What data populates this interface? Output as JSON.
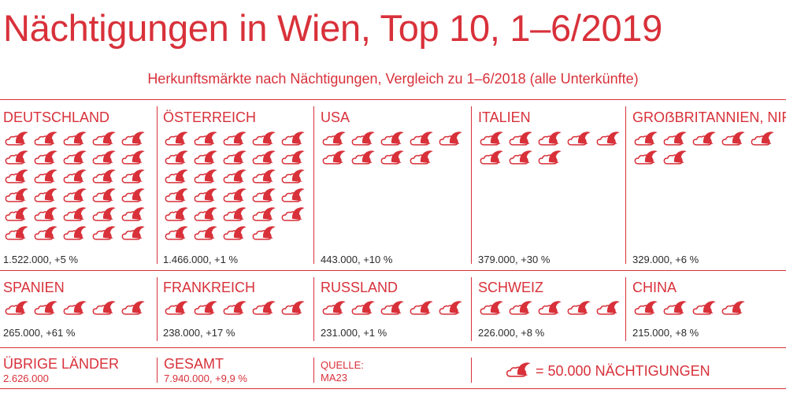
{
  "title": "Nächtigungen in Wien, Top 10, 1–6/2019",
  "subtitle": "Herkunftsmärkte nach Nächtigungen, Vergleich zu 1–6/2018 (alle Unterkünfte)",
  "colors": {
    "accent": "#d8313a",
    "value_text": "#2b2b2b"
  },
  "icon_name": "moon-cloud-icon",
  "chart_data": {
    "type": "pictogram",
    "title": "Nächtigungen in Wien, Top 10, 1–6/2019",
    "subtitle": "Herkunftsmärkte nach Nächtigungen, Vergleich zu 1–6/2018 (alle Unterkünfte)",
    "unit_per_icon": 50000,
    "rows": [
      [
        {
          "country": "DEUTSCHLAND",
          "icons": 30,
          "value": 1522000,
          "label": "1.522.000, +5 %"
        },
        {
          "country": "ÖSTERREICH",
          "icons": 29,
          "value": 1466000,
          "label": "1.466.000, +1 %"
        },
        {
          "country": "USA",
          "icons": 9,
          "value": 443000,
          "label": "443.000, +10 %"
        },
        {
          "country": "ITALIEN",
          "icons": 8,
          "value": 379000,
          "label": "379.000, +30 %"
        },
        {
          "country": "GROẞBRITANNIEN, NIR",
          "icons": 7,
          "value": 329000,
          "label": "329.000, +6 %"
        }
      ],
      [
        {
          "country": "SPANIEN",
          "icons": 5,
          "value": 265000,
          "label": "265.000, +61 %"
        },
        {
          "country": "FRANKREICH",
          "icons": 5,
          "value": 238000,
          "label": "238.000, +17 %"
        },
        {
          "country": "RUSSLAND",
          "icons": 5,
          "value": 231000,
          "label": "231.000, +1 %"
        },
        {
          "country": "SCHWEIZ",
          "icons": 5,
          "value": 226000,
          "label": "226.000, +8 %"
        },
        {
          "country": "CHINA",
          "icons": 4,
          "value": 215000,
          "label": "215.000, +8 %"
        }
      ]
    ]
  },
  "footer": {
    "other_label": "ÜBRIGE LÄNDER",
    "other_value": "2.626.000",
    "total_label": "GESAMT",
    "total_value": "7.940.000, +9,9 %",
    "source_label": "QUELLE:",
    "source_value": "MA23",
    "legend_text": "= 50.000 NÄCHTIGUNGEN"
  }
}
